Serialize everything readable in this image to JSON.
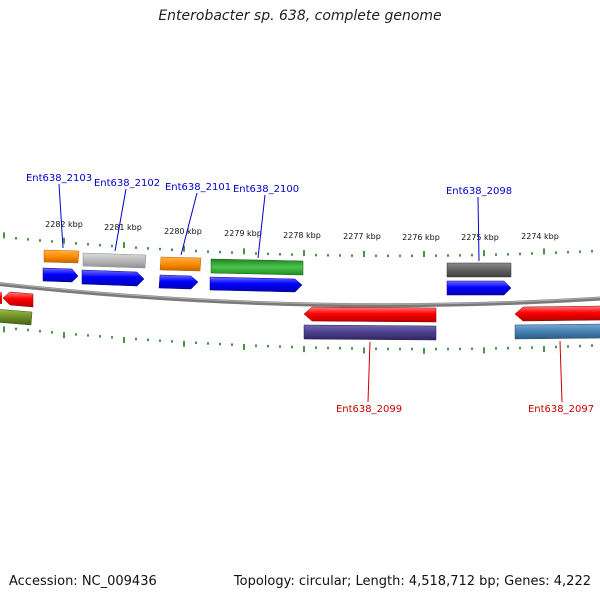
{
  "title": "Enterobacter sp. 638, complete genome",
  "accession": "Accession: NC_009436",
  "stats": "Topology: circular; Length: 4,518,712 bp; Genes: 4,222",
  "kbp_labels": [
    "2282 kbp",
    "2281 kbp",
    "2280 kbp",
    "2279 kbp",
    "2278 kbp",
    "2277 kbp",
    "2276 kbp",
    "2275 kbp",
    "2274 kbp"
  ],
  "gene_labels": [
    {
      "text": "Ent638_2103",
      "strand": "forward"
    },
    {
      "text": "Ent638_2102",
      "strand": "forward"
    },
    {
      "text": "Ent638_2101",
      "strand": "forward"
    },
    {
      "text": "Ent638_2100",
      "strand": "forward"
    },
    {
      "text": "Ent638_2098",
      "strand": "forward"
    },
    {
      "text": "Ent638_2099",
      "strand": "reverse"
    },
    {
      "text": "Ent638_2097",
      "strand": "reverse"
    }
  ],
  "colors": {
    "backbone": "#808080",
    "tick": "#1a7a1a",
    "forward_label": "#0000cc",
    "reverse_label": "#cc0000",
    "cds_forward": "#0000ff",
    "cds_reverse": "#ff0000",
    "orange": "#ff8c00",
    "light_gray": "#b8b8b8",
    "dark_gray": "#606060",
    "green": "#2ea82e",
    "purple": "#4b3f8c",
    "steel_blue": "#4682b4",
    "olive": "#6b8e23"
  }
}
